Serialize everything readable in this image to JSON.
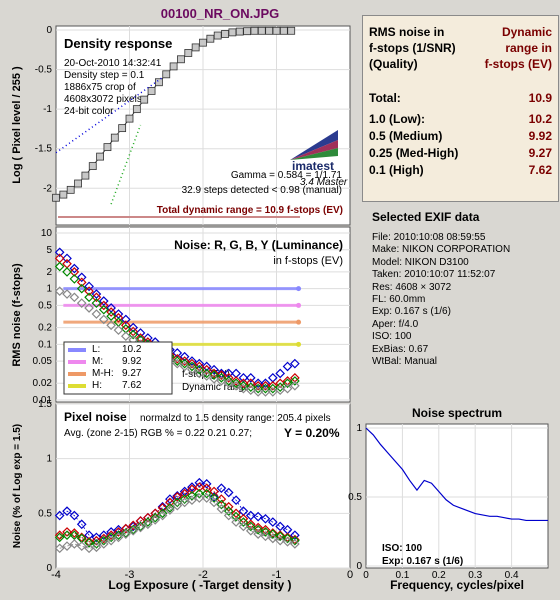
{
  "header": {
    "title": "00100_NR_ON.JPG"
  },
  "colors": {
    "title": "#6b0a5f",
    "dark_red": "#7a0000",
    "blue": "#0000cc",
    "red": "#cc0000",
    "green": "#008800",
    "gray": "#888888"
  },
  "axis": {
    "xlabel": "Log Exposure ( -Target density )",
    "ticks": [
      "-4",
      "-3",
      "-2",
      "-1",
      "0"
    ]
  },
  "density_panel": {
    "title": "Density response",
    "ylabel": "Log ( Pixel level / 255 )",
    "yticks": [
      "0",
      "-0.5",
      "-1",
      "-1.5",
      "-2"
    ],
    "info": [
      "20-Oct-2010 14:32:41",
      "Density step = 0.1",
      "1886x75 crop of",
      "4608x3072 pixels",
      "24-bit color"
    ],
    "logo": "imatest",
    "logo_sub": "3.4  Master",
    "gamma": "Gamma = 0.584 = 1/1.71",
    "steps": "32.9 steps detected < 0.98 (manual)",
    "range_text": "Total dynamic range = 10.9 f-stops (EV)"
  },
  "noise_panel": {
    "title": "Noise: R, G, B, Y (Luminance)",
    "subtitle": "in f-stops (EV)",
    "ylabel": "RMS noise (f-stops)",
    "yticks": [
      "10",
      "5",
      "2",
      "1",
      "0.5",
      "0.2",
      "0.1",
      "0.05",
      "0.02",
      "0.01"
    ],
    "legend": [
      {
        "label": "L:",
        "value": "10.2",
        "color": "#8888ff"
      },
      {
        "label": "M:",
        "value": "9.92",
        "color": "#ee88ee"
      },
      {
        "label": "M-H:",
        "value": "9.27",
        "color": "#ee9966"
      },
      {
        "label": "H:",
        "value": "7.62",
        "color": "#dddd33"
      }
    ],
    "note1": "f-stop (EV)",
    "note2": "Dynamic range"
  },
  "pixel_panel": {
    "title": "Pixel noise",
    "subtitle": "normalzd to 1.5 density range: 205.4 pixels",
    "avg": "Avg. (zone 2-15) RGB % = 0.22  0.21  0.27;",
    "y_value": "Y = 0.20%",
    "ylabel": "Noise (% of Log exp = 1.5)",
    "yticks": [
      "1.5",
      "1",
      "0.5",
      "0"
    ]
  },
  "rms_table": {
    "h1": [
      "RMS noise in",
      "f-stops (1/SNR)",
      "(Quality)"
    ],
    "h2": [
      "Dynamic",
      "range in",
      "f-stops (EV)"
    ],
    "rows": [
      {
        "label": "Total:",
        "value": "10.9"
      },
      {
        "label": "1.0     (Low):",
        "value": "10.2"
      },
      {
        "label": "0.5   (Medium)",
        "value": "9.92"
      },
      {
        "label": "0.25 (Med-High)",
        "value": "9.27"
      },
      {
        "label": "0.1    (High)",
        "value": "7.62"
      }
    ]
  },
  "exif": {
    "header": "Selected EXIF data",
    "rows": [
      "File:  2010:10:08 08:59:55",
      "Make:  NIKON CORPORATION",
      "Model: NIKON D3100",
      "Taken:  2010:10:07 11:52:07",
      "Res:   4608 × 3072",
      "FL:  60.0mm",
      "Exp:  0.167 s  (1/6)",
      "Aper:  f/4.0",
      "ISO:   100",
      "ExBias: 0.67",
      "WtBal: Manual"
    ]
  },
  "spectrum": {
    "title": "Noise spectrum",
    "xlabel": "Frequency, cycles/pixel",
    "xticks": [
      "0",
      "0.1",
      "0.2",
      "0.3",
      "0.4"
    ],
    "yticks": [
      "1",
      "0.5",
      "0"
    ],
    "iso": "ISO:    100",
    "exp": "Exp:   0.167 s   (1/6)"
  },
  "chart_data": [
    {
      "type": "line",
      "name": "Density response",
      "x": [
        -4.0,
        -3.9,
        -3.8,
        -3.7,
        -3.6,
        -3.5,
        -3.4,
        -3.3,
        -3.2,
        -3.1,
        -3.0,
        -2.9,
        -2.8,
        -2.7,
        -2.6,
        -2.5,
        -2.4,
        -2.3,
        -2.2,
        -2.1,
        -2.0,
        -1.9,
        -1.8,
        -1.7,
        -1.6,
        -1.5,
        -1.4,
        -1.3,
        -1.2,
        -1.1,
        -1.0,
        -0.9,
        -0.8
      ],
      "y": [
        -2.12,
        -2.08,
        -2.02,
        -1.94,
        -1.84,
        -1.72,
        -1.6,
        -1.48,
        -1.36,
        -1.24,
        -1.12,
        -1.0,
        -0.88,
        -0.77,
        -0.66,
        -0.56,
        -0.46,
        -0.37,
        -0.29,
        -0.22,
        -0.16,
        -0.11,
        -0.07,
        -0.05,
        -0.03,
        -0.02,
        -0.015,
        -0.01,
        -0.01,
        -0.01,
        -0.01,
        -0.01,
        -0.01
      ],
      "xlim": [
        -4,
        0
      ],
      "ylim": [
        -2.3,
        0
      ]
    },
    {
      "type": "line",
      "name": "RMS noise (f-stops)",
      "x": [
        -3.95,
        -3.85,
        -3.75,
        -3.65,
        -3.55,
        -3.45,
        -3.35,
        -3.25,
        -3.15,
        -3.05,
        -2.95,
        -2.85,
        -2.75,
        -2.65,
        -2.55,
        -2.45,
        -2.35,
        -2.25,
        -2.15,
        -2.05,
        -1.95,
        -1.85,
        -1.75,
        -1.65,
        -1.55,
        -1.45,
        -1.35,
        -1.25,
        -1.15,
        -1.05,
        -0.95,
        -0.85,
        -0.75
      ],
      "series": [
        {
          "name": "B",
          "values": [
            4.5,
            3.5,
            2.3,
            1.6,
            1.1,
            0.8,
            0.6,
            0.45,
            0.35,
            0.28,
            0.2,
            0.16,
            0.13,
            0.11,
            0.09,
            0.08,
            0.07,
            0.06,
            0.05,
            0.045,
            0.04,
            0.035,
            0.03,
            0.03,
            0.03,
            0.025,
            0.025,
            0.02,
            0.02,
            0.025,
            0.03,
            0.04,
            0.045
          ]
        },
        {
          "name": "R",
          "values": [
            3.5,
            2.8,
            2.0,
            1.3,
            0.9,
            0.7,
            0.5,
            0.38,
            0.3,
            0.22,
            0.17,
            0.13,
            0.11,
            0.09,
            0.075,
            0.065,
            0.055,
            0.05,
            0.045,
            0.04,
            0.035,
            0.03,
            0.028,
            0.025,
            0.022,
            0.02,
            0.02,
            0.018,
            0.018,
            0.018,
            0.02,
            0.022,
            0.025
          ]
        },
        {
          "name": "G",
          "values": [
            2.5,
            2.0,
            1.5,
            1.0,
            0.7,
            0.55,
            0.42,
            0.32,
            0.25,
            0.19,
            0.15,
            0.12,
            0.1,
            0.085,
            0.07,
            0.06,
            0.05,
            0.045,
            0.04,
            0.035,
            0.03,
            0.028,
            0.025,
            0.022,
            0.02,
            0.018,
            0.017,
            0.016,
            0.016,
            0.016,
            0.017,
            0.02,
            0.022
          ]
        },
        {
          "name": "Y",
          "values": [
            0.9,
            0.8,
            0.7,
            0.55,
            0.45,
            0.35,
            0.28,
            0.22,
            0.18,
            0.14,
            0.12,
            0.1,
            0.085,
            0.07,
            0.06,
            0.052,
            0.045,
            0.04,
            0.035,
            0.03,
            0.027,
            0.024,
            0.022,
            0.02,
            0.018,
            0.016,
            0.015,
            0.014,
            0.014,
            0.014,
            0.015,
            0.016,
            0.018
          ]
        }
      ],
      "xlim": [
        -4,
        0
      ],
      "ylim": [
        0.01,
        10
      ],
      "yscale": "log"
    },
    {
      "type": "line",
      "name": "Pixel noise",
      "x": [
        -3.95,
        -3.85,
        -3.75,
        -3.65,
        -3.55,
        -3.45,
        -3.35,
        -3.25,
        -3.15,
        -3.05,
        -2.95,
        -2.85,
        -2.75,
        -2.65,
        -2.55,
        -2.45,
        -2.35,
        -2.25,
        -2.15,
        -2.05,
        -1.95,
        -1.85,
        -1.75,
        -1.65,
        -1.55,
        -1.45,
        -1.35,
        -1.25,
        -1.15,
        -1.05,
        -0.95,
        -0.85,
        -0.75
      ],
      "series": [
        {
          "name": "B",
          "values": [
            0.48,
            0.52,
            0.48,
            0.4,
            0.3,
            0.28,
            0.3,
            0.33,
            0.35,
            0.36,
            0.38,
            0.43,
            0.46,
            0.5,
            0.56,
            0.63,
            0.66,
            0.7,
            0.74,
            0.78,
            0.77,
            0.65,
            0.73,
            0.69,
            0.62,
            0.52,
            0.48,
            0.47,
            0.45,
            0.42,
            0.38,
            0.35,
            0.3
          ]
        },
        {
          "name": "R",
          "values": [
            0.3,
            0.33,
            0.32,
            0.28,
            0.24,
            0.25,
            0.27,
            0.3,
            0.33,
            0.36,
            0.39,
            0.43,
            0.46,
            0.5,
            0.55,
            0.6,
            0.65,
            0.68,
            0.72,
            0.74,
            0.73,
            0.7,
            0.63,
            0.56,
            0.5,
            0.45,
            0.4,
            0.37,
            0.35,
            0.32,
            0.3,
            0.28,
            0.26
          ]
        },
        {
          "name": "G",
          "values": [
            0.28,
            0.3,
            0.3,
            0.27,
            0.23,
            0.22,
            0.25,
            0.28,
            0.3,
            0.32,
            0.35,
            0.38,
            0.42,
            0.46,
            0.5,
            0.55,
            0.6,
            0.63,
            0.66,
            0.68,
            0.68,
            0.64,
            0.58,
            0.52,
            0.47,
            0.42,
            0.38,
            0.35,
            0.33,
            0.31,
            0.29,
            0.27,
            0.25
          ]
        },
        {
          "name": "Y",
          "values": [
            0.18,
            0.2,
            0.22,
            0.2,
            0.18,
            0.19,
            0.22,
            0.25,
            0.28,
            0.31,
            0.34,
            0.37,
            0.4,
            0.44,
            0.48,
            0.53,
            0.57,
            0.6,
            0.62,
            0.64,
            0.64,
            0.6,
            0.54,
            0.48,
            0.42,
            0.38,
            0.34,
            0.31,
            0.29,
            0.27,
            0.25,
            0.24,
            0.22
          ]
        }
      ],
      "xlim": [
        -4,
        0
      ],
      "ylim": [
        0,
        1.5
      ]
    },
    {
      "type": "line",
      "name": "Noise spectrum",
      "x": [
        0.0,
        0.02,
        0.04,
        0.06,
        0.08,
        0.1,
        0.12,
        0.14,
        0.16,
        0.18,
        0.2,
        0.22,
        0.24,
        0.26,
        0.28,
        0.3,
        0.32,
        0.34,
        0.36,
        0.38,
        0.4,
        0.42,
        0.44,
        0.46,
        0.48,
        0.5
      ],
      "y": [
        1.0,
        0.95,
        0.88,
        0.82,
        0.76,
        0.7,
        0.62,
        0.55,
        0.62,
        0.6,
        0.54,
        0.48,
        0.44,
        0.42,
        0.4,
        0.38,
        0.37,
        0.36,
        0.36,
        0.35,
        0.34,
        0.34,
        0.33,
        0.33,
        0.33,
        0.33
      ],
      "xlim": [
        0,
        0.5
      ],
      "ylim": [
        0,
        1
      ]
    }
  ]
}
